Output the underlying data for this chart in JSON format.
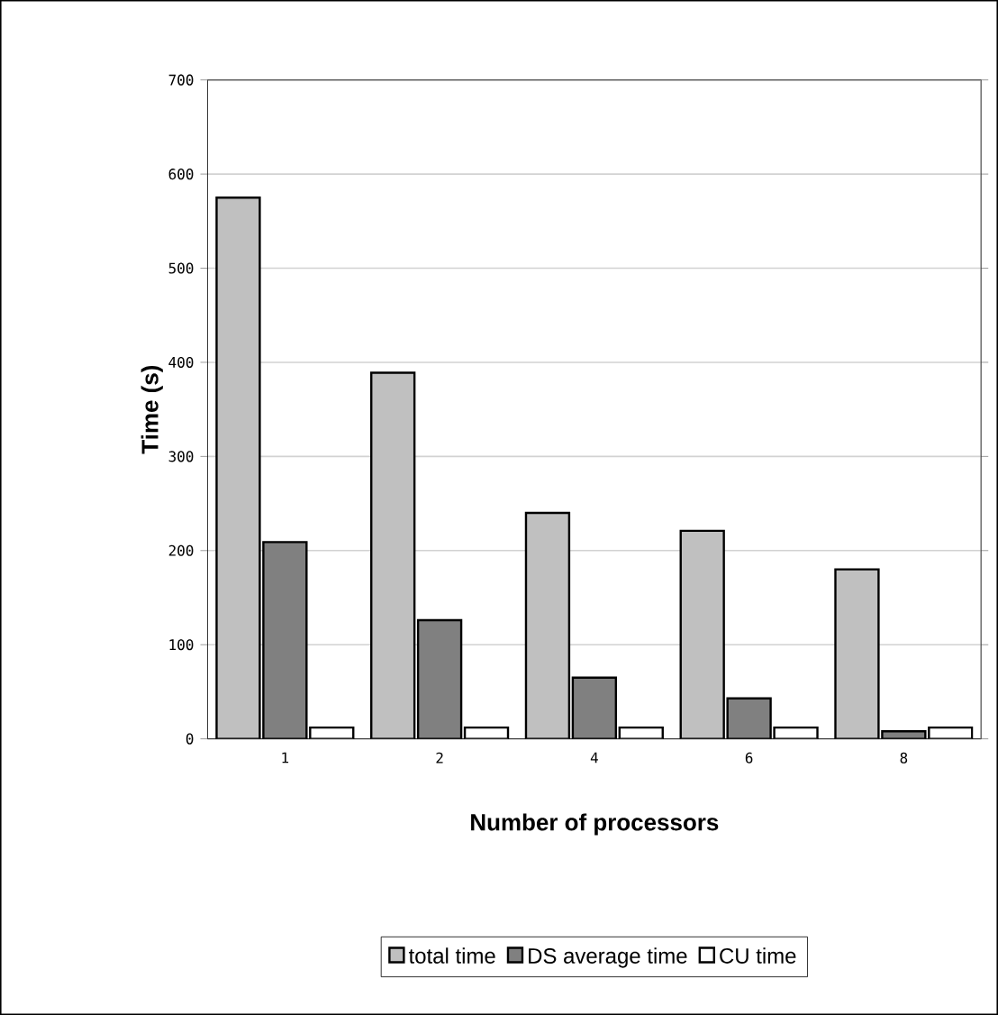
{
  "chart_data": {
    "type": "bar",
    "xlabel": "Number of processors",
    "ylabel": "Time (s)",
    "categories": [
      "1",
      "2",
      "4",
      "6",
      "8"
    ],
    "series": [
      {
        "name": "total time",
        "color": "#c0c0c0",
        "values": [
          575,
          389,
          240,
          221,
          180
        ]
      },
      {
        "name": "DS average time",
        "color": "#808080",
        "values": [
          209,
          126,
          65,
          43,
          8
        ]
      },
      {
        "name": "CU time",
        "color": "#ffffff",
        "values": [
          12,
          12,
          12,
          12,
          12
        ]
      }
    ],
    "ylim": [
      0,
      700
    ],
    "yticks": [
      0,
      100,
      200,
      300,
      400,
      500,
      600,
      700
    ],
    "grid": "y",
    "legend": "bottom"
  }
}
